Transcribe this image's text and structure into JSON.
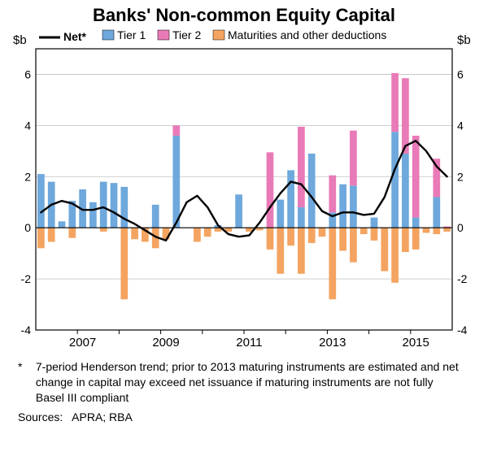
{
  "chart": {
    "type": "stacked-bar-with-line",
    "title": "Banks' Non-common Equity Capital",
    "y_label_left": "$b",
    "y_label_right": "$b",
    "y_min": -4,
    "y_max": 7,
    "y_ticks": [
      -4,
      -2,
      0,
      2,
      4,
      6
    ],
    "x_tick_labels": [
      "2007",
      "2009",
      "2011",
      "2013",
      "2015"
    ],
    "x_tick_positions": [
      4,
      12,
      20,
      28,
      36
    ],
    "n_periods": 40,
    "colors": {
      "tier1": "#6ea8dc",
      "tier2": "#e97ab8",
      "maturities": "#f4a460",
      "net_line": "#000000",
      "axis": "#000000",
      "grid": "#bfbfbf",
      "background": "#ffffff",
      "plot_border": "#000000"
    },
    "stroke_widths": {
      "net_line": 2.4,
      "axis": 1,
      "grid": 0.8,
      "plot_border": 1.2
    },
    "bar_width_ratio": 0.68,
    "legend": {
      "items": [
        {
          "type": "line",
          "label": "Net*",
          "color": "#000000"
        },
        {
          "type": "swatch",
          "label": "Tier 1",
          "color": "#6ea8dc"
        },
        {
          "type": "swatch",
          "label": "Tier 2",
          "color": "#e97ab8"
        },
        {
          "type": "swatch",
          "label": "Maturities and other deductions",
          "color": "#f4a460"
        }
      ],
      "fontsize": 14
    },
    "series": {
      "tier1": [
        2.1,
        1.8,
        0.25,
        1.05,
        1.5,
        1.0,
        1.8,
        1.75,
        1.6,
        0.0,
        0.0,
        0.9,
        0.0,
        3.6,
        0.0,
        0.0,
        0.0,
        0.1,
        0.0,
        1.3,
        0.0,
        0.0,
        0.0,
        1.1,
        2.25,
        0.8,
        2.9,
        0.0,
        0.6,
        1.7,
        1.65,
        0.0,
        0.4,
        0.0,
        3.75,
        2.9,
        0.4,
        0.0,
        1.2,
        0.0
      ],
      "tier2": [
        0.0,
        0.0,
        0.0,
        0.0,
        0.0,
        0.0,
        0.0,
        0.0,
        0.0,
        0.0,
        0.0,
        0.0,
        0.0,
        0.4,
        0.0,
        0.0,
        0.0,
        0.0,
        0.0,
        0.0,
        0.0,
        0.0,
        2.95,
        0.0,
        0.0,
        3.15,
        0.0,
        0.0,
        1.45,
        0.0,
        2.15,
        0.0,
        0.0,
        0.0,
        2.3,
        2.95,
        3.2,
        0.0,
        1.5,
        0.05
      ],
      "maturities": [
        -0.8,
        -0.55,
        0.0,
        -0.4,
        0.0,
        0.0,
        -0.15,
        0.0,
        -2.8,
        -0.45,
        -0.55,
        -0.8,
        -0.45,
        0.0,
        0.0,
        -0.55,
        -0.35,
        -0.15,
        -0.15,
        0.0,
        -0.15,
        -0.1,
        -0.85,
        -1.8,
        -0.7,
        -1.8,
        -0.6,
        -0.35,
        -2.8,
        -0.9,
        -1.35,
        -0.25,
        -0.5,
        -1.7,
        -2.15,
        -0.95,
        -0.85,
        -0.2,
        -0.25,
        -0.15
      ],
      "net": [
        0.6,
        0.9,
        1.05,
        0.95,
        0.7,
        0.7,
        0.8,
        0.6,
        0.35,
        0.15,
        -0.1,
        -0.35,
        -0.5,
        0.2,
        1.0,
        1.25,
        0.8,
        0.1,
        -0.25,
        -0.35,
        -0.3,
        0.2,
        0.8,
        1.35,
        1.8,
        1.7,
        1.2,
        0.65,
        0.45,
        0.6,
        0.6,
        0.5,
        0.55,
        1.2,
        2.3,
        3.2,
        3.4,
        3.0,
        2.4,
        2.0
      ]
    }
  },
  "footnote": {
    "marker": "*",
    "text": "7-period Henderson trend; prior to 2013 maturing instruments are estimated and net change in capital may exceed net issuance if maturing instruments are not fully Basel III compliant"
  },
  "sources": {
    "label": "Sources:",
    "value": "APRA; RBA"
  }
}
